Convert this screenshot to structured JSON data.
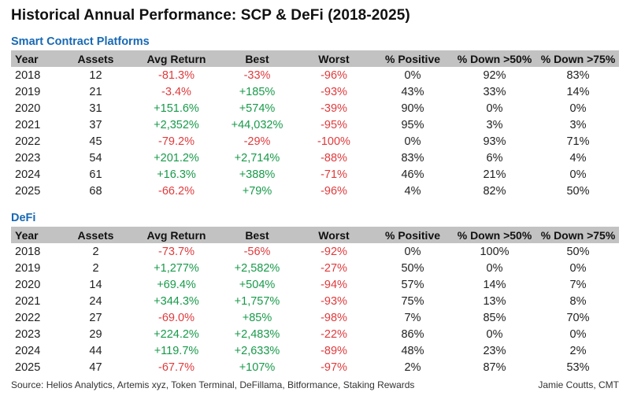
{
  "title": "Historical Annual Performance: SCP & DeFi (2018-2025)",
  "footer": {
    "source": "Source: Helios Analytics, Artemis xyz, Token Terminal, DeFillama, Bitformance, Staking Rewards",
    "author": "Jamie Coutts, CMT"
  },
  "colors": {
    "section_heading": "#1769b5",
    "header_band": "#c2c2c2",
    "negative": "#e03a3c",
    "positive": "#189a4a",
    "text": "#212121"
  },
  "chart_data": [
    {
      "type": "table",
      "title": "Smart Contract Platforms",
      "columns": [
        "Year",
        "Assets",
        "Avg Return",
        "Best",
        "Worst",
        "% Positive",
        "% Down >50%",
        "% Down >75%"
      ],
      "rows": [
        [
          "2018",
          "12",
          "-81.3%",
          "-33%",
          "-96%",
          "0%",
          "92%",
          "83%"
        ],
        [
          "2019",
          "21",
          "-3.4%",
          "+185%",
          "-93%",
          "43%",
          "33%",
          "14%"
        ],
        [
          "2020",
          "31",
          "+151.6%",
          "+574%",
          "-39%",
          "90%",
          "0%",
          "0%"
        ],
        [
          "2021",
          "37",
          "+2,352%",
          "+44,032%",
          "-95%",
          "95%",
          "3%",
          "3%"
        ],
        [
          "2022",
          "45",
          "-79.2%",
          "-29%",
          "-100%",
          "0%",
          "93%",
          "71%"
        ],
        [
          "2023",
          "54",
          "+201.2%",
          "+2,714%",
          "-88%",
          "83%",
          "6%",
          "4%"
        ],
        [
          "2024",
          "61",
          "+16.3%",
          "+388%",
          "-71%",
          "46%",
          "21%",
          "0%"
        ],
        [
          "2025",
          "68",
          "-66.2%",
          "+79%",
          "-96%",
          "4%",
          "82%",
          "50%"
        ]
      ]
    },
    {
      "type": "table",
      "title": "DeFi",
      "columns": [
        "Year",
        "Assets",
        "Avg Return",
        "Best",
        "Worst",
        "% Positive",
        "% Down >50%",
        "% Down >75%"
      ],
      "rows": [
        [
          "2018",
          "2",
          "-73.7%",
          "-56%",
          "-92%",
          "0%",
          "100%",
          "50%"
        ],
        [
          "2019",
          "2",
          "+1,277%",
          "+2,582%",
          "-27%",
          "50%",
          "0%",
          "0%"
        ],
        [
          "2020",
          "14",
          "+69.4%",
          "+504%",
          "-94%",
          "57%",
          "14%",
          "7%"
        ],
        [
          "2021",
          "24",
          "+344.3%",
          "+1,757%",
          "-93%",
          "75%",
          "13%",
          "8%"
        ],
        [
          "2022",
          "27",
          "-69.0%",
          "+85%",
          "-98%",
          "7%",
          "85%",
          "70%"
        ],
        [
          "2023",
          "29",
          "+224.2%",
          "+2,483%",
          "-22%",
          "86%",
          "0%",
          "0%"
        ],
        [
          "2024",
          "44",
          "+119.7%",
          "+2,633%",
          "-89%",
          "48%",
          "23%",
          "2%"
        ],
        [
          "2025",
          "47",
          "-67.7%",
          "+107%",
          "-97%",
          "2%",
          "87%",
          "53%"
        ]
      ]
    }
  ]
}
